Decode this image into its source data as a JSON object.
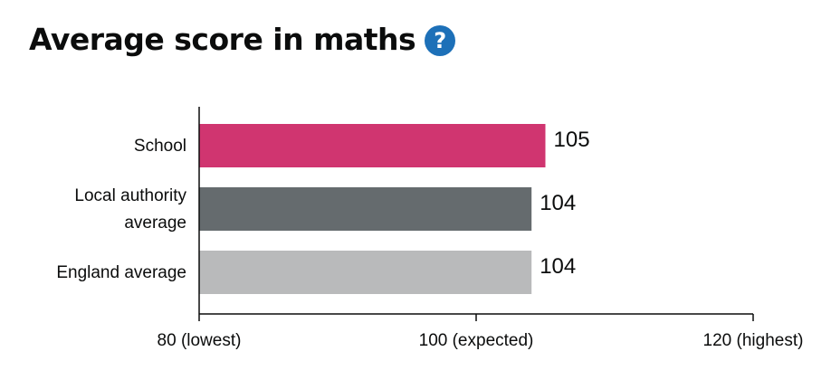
{
  "header": {
    "title": "Average score in maths",
    "help_icon": "question-mark-icon",
    "help_icon_glyph": "?",
    "help_icon_color": "#1d70b8"
  },
  "chart_data": {
    "type": "bar",
    "orientation": "horizontal",
    "title": "Average score in maths",
    "categories": [
      [
        "School"
      ],
      [
        "Local authority",
        "average"
      ],
      [
        "England average"
      ]
    ],
    "values": [
      105,
      104,
      104
    ],
    "value_labels": [
      "105",
      "104",
      "104"
    ],
    "colors": [
      "#d03570",
      "#656b6e",
      "#b9babb"
    ],
    "xlim": [
      80,
      120
    ],
    "ticks": [
      {
        "value": 80,
        "label": "80 (lowest)"
      },
      {
        "value": 100,
        "label": "100 (expected)"
      },
      {
        "value": 120,
        "label": "120 (highest)"
      }
    ],
    "grid": false,
    "legend": "none"
  }
}
